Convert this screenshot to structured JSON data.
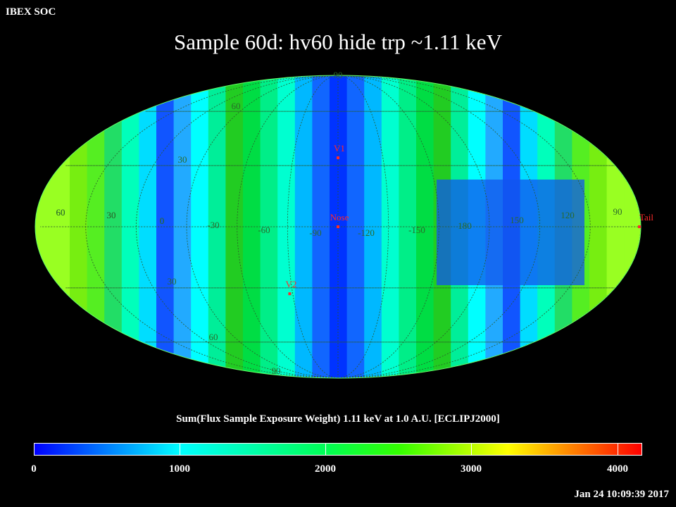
{
  "header": {
    "org_label": "IBEX SOC",
    "title": "Sample 60d: hv60 hide trp ~1.11 keV"
  },
  "map": {
    "projection": "Mollweide",
    "lat_labels": [
      "90",
      "60",
      "30",
      "0",
      "30",
      "60",
      "90",
      "60",
      "30"
    ],
    "lon_labels": [
      "60",
      "30",
      "0",
      "-30",
      "-60",
      "-90",
      "-120",
      "-150",
      "180",
      "150",
      "120",
      "90"
    ],
    "markers": [
      {
        "name": "V1",
        "lon": -92,
        "lat": 34
      },
      {
        "name": "Nose",
        "lon": -92,
        "lat": 0
      },
      {
        "name": "V2",
        "lon": -60,
        "lat": -33
      },
      {
        "name": "Tail",
        "lon": 88,
        "lat": 0
      }
    ],
    "colors": {
      "markers": "#ff2a2a",
      "grid": "#2b5a2b"
    }
  },
  "colorbar": {
    "label": "Sum(Flux Sample Exposure Weight)  1.11 keV at 1.0 A.U. [ECLIPJ2000]",
    "ticks": [
      "0",
      "1000",
      "2000",
      "3000",
      "4000"
    ],
    "range": [
      0,
      4176
    ]
  },
  "footer": {
    "timestamp": "Jan 24 10:09:39 2017"
  }
}
